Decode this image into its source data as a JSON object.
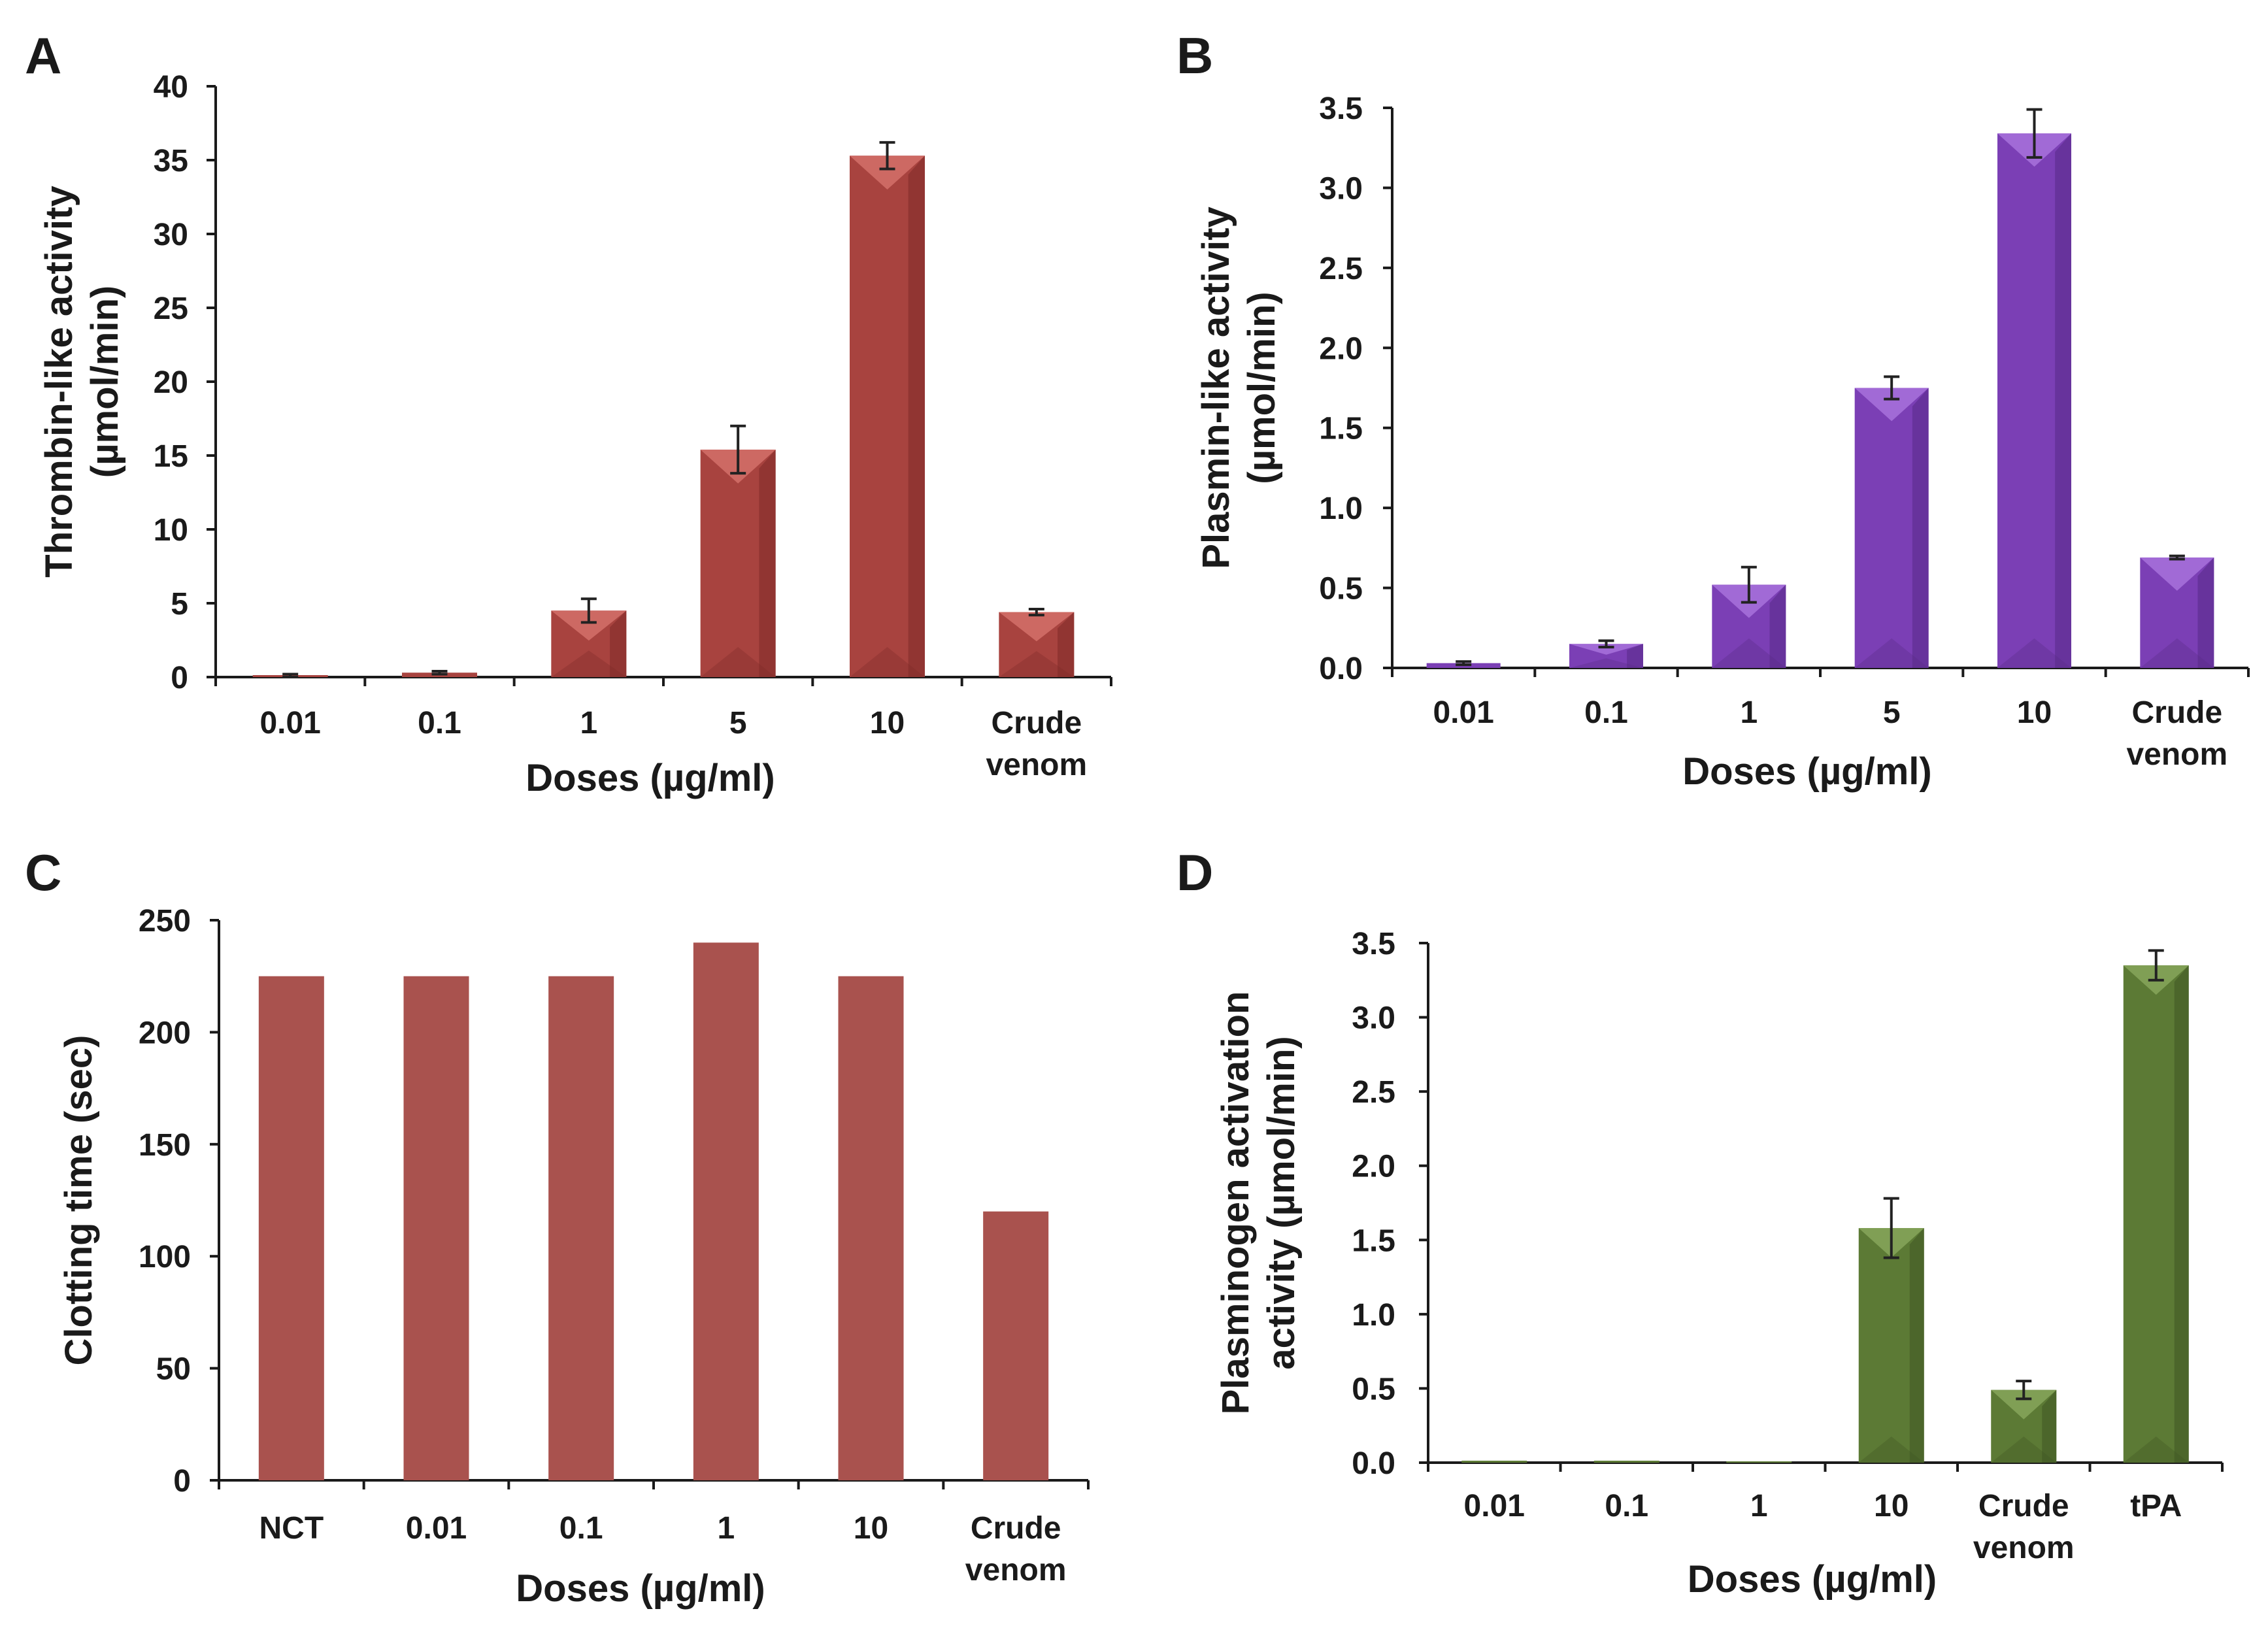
{
  "chart_data": [
    {
      "panel": "A",
      "type": "bar",
      "categories": [
        "0.01",
        "0.1",
        "1",
        "5",
        "10",
        "Crude venom"
      ],
      "values": [
        0.1,
        0.3,
        4.5,
        15.4,
        35.3,
        4.4
      ],
      "errors": [
        0.1,
        0.1,
        0.8,
        1.6,
        0.9,
        0.2
      ],
      "xlabel": "Doses (µg/ml)",
      "ylabel": [
        "Thrombin-like activity",
        "(µmol/min)"
      ],
      "ylim": [
        0,
        40
      ],
      "yticks": [
        "0",
        "5",
        "10",
        "15",
        "20",
        "25",
        "30",
        "35",
        "40"
      ],
      "color": "#a8433f",
      "color_light": "#d4706a",
      "color_dark": "#7e2a28",
      "grid": false
    },
    {
      "panel": "B",
      "type": "bar",
      "categories": [
        "0.01",
        "0.1",
        "1",
        "5",
        "10",
        "Crude venom"
      ],
      "values": [
        0.03,
        0.15,
        0.52,
        1.75,
        3.34,
        0.69
      ],
      "errors": [
        0.01,
        0.02,
        0.11,
        0.07,
        0.15,
        0.01
      ],
      "xlabel": "Doses (µg/ml)",
      "ylabel": [
        "Plasmin-like activity",
        "(µmol/min)"
      ],
      "ylim": [
        0,
        3.5
      ],
      "yticks": [
        "0.0",
        "0.5",
        "1.0",
        "1.5",
        "2.0",
        "2.5",
        "3.0",
        "3.5"
      ],
      "color": "#7b3fb5",
      "color_light": "#a872dc",
      "color_dark": "#582a86",
      "grid": false
    },
    {
      "panel": "C",
      "type": "bar",
      "categories": [
        "NCT",
        "0.01",
        "0.1",
        "1",
        "10",
        "Crude venom"
      ],
      "values": [
        225,
        225,
        225,
        240,
        225,
        120
      ],
      "errors": null,
      "xlabel": "Doses (µg/ml)",
      "ylabel": [
        "Clotting time (sec)"
      ],
      "ylim": [
        0,
        250
      ],
      "yticks": [
        "0",
        "50",
        "100",
        "150",
        "200",
        "250"
      ],
      "color": "#a9524e",
      "grid": false
    },
    {
      "panel": "D",
      "type": "bar",
      "categories": [
        "0.01",
        "0.1",
        "1",
        "10",
        "Crude venom",
        "tPA"
      ],
      "values": [
        0.01,
        0.01,
        0.0,
        1.58,
        0.49,
        3.35
      ],
      "errors": [
        0,
        0,
        0,
        0.2,
        0.06,
        0.1
      ],
      "xlabel": "Doses (µg/ml)",
      "ylabel": [
        "Plasminogen activation",
        "activity (µmol/min)"
      ],
      "ylim": [
        0,
        3.5
      ],
      "yticks": [
        "0.0",
        "0.5",
        "1.0",
        "1.5",
        "2.0",
        "2.5",
        "3.0",
        "3.5"
      ],
      "color": "#5c7a35",
      "color_light": "#86a65a",
      "color_dark": "#3f5622",
      "grid": false
    }
  ]
}
